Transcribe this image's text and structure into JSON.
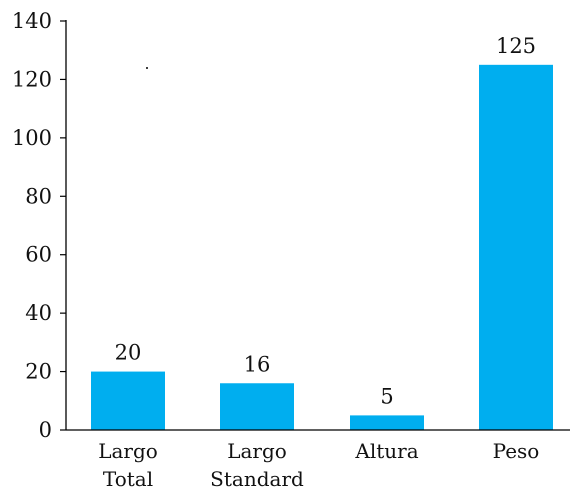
{
  "chart_data": {
    "type": "bar",
    "categories": [
      [
        "Largo",
        "Total"
      ],
      [
        "Largo",
        "Standard"
      ],
      [
        "Altura"
      ],
      [
        "Peso"
      ]
    ],
    "values": [
      20,
      16,
      5,
      125
    ],
    "data_labels": [
      "20",
      "16",
      "5",
      "125"
    ],
    "title": "",
    "xlabel": "",
    "ylabel": "",
    "ylim": [
      0,
      140
    ],
    "yticks": [
      0,
      20,
      40,
      60,
      80,
      100,
      120,
      140
    ],
    "ytick_labels": [
      "0",
      "20",
      "40",
      "60",
      "80",
      "100",
      "120",
      "140"
    ],
    "grid": false,
    "legend": "none",
    "bar_color": "#00AEEF",
    "axis_color": "#000000"
  }
}
